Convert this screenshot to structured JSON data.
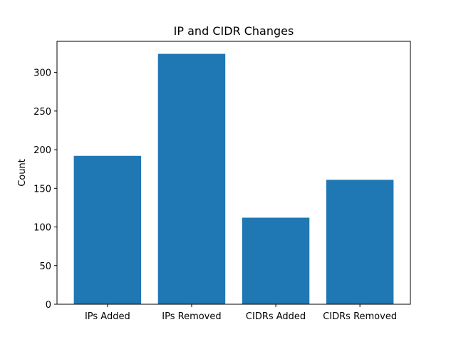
{
  "chart_data": {
    "type": "bar",
    "title": "IP and CIDR Changes",
    "xlabel": "",
    "ylabel": "Count",
    "categories": [
      "IPs Added",
      "IPs Removed",
      "CIDRs Added",
      "CIDRs Removed"
    ],
    "values": [
      192,
      324,
      112,
      161
    ],
    "ylim": [
      0,
      340.2
    ],
    "yticks": [
      0,
      50,
      100,
      150,
      200,
      250,
      300
    ],
    "bar_color": "#1f77b4",
    "grid": false,
    "legend": "none"
  }
}
